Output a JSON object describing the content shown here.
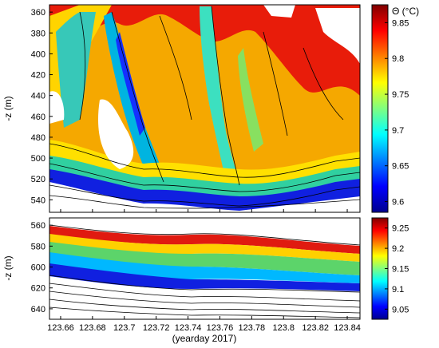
{
  "chart_data": [
    {
      "type": "heatmap",
      "panel": "upper",
      "xlabel": "",
      "ylabel": "-z (m)",
      "xlim": [
        123.653,
        123.848
      ],
      "ylim": [
        552,
        353
      ],
      "y_ticks": [
        360,
        380,
        400,
        420,
        440,
        460,
        480,
        500,
        520,
        540
      ],
      "colorbar": {
        "label": "Θ (°C)",
        "range": [
          9.585,
          9.875
        ],
        "ticks": [
          9.6,
          9.65,
          9.7,
          9.75,
          9.8,
          9.85
        ],
        "colormap": "jet"
      },
      "overlay": "black density contours",
      "color_field_description": "warm (red) water fills the upper column with cold (blue/green) intrusions descending diagonally between yeardays 123.66-123.72 and 123.74-123.78; colder water near 500-540 m; white regions below ~520 m and patches where data is absent"
    },
    {
      "type": "heatmap",
      "panel": "lower",
      "xlabel": "(yearday 2017)",
      "ylabel": "-z (m)",
      "xlim": [
        123.653,
        123.848
      ],
      "ylim": [
        650,
        553
      ],
      "y_ticks": [
        560,
        580,
        600,
        620,
        640
      ],
      "x_ticks": [
        123.66,
        123.68,
        123.7,
        123.72,
        123.74,
        123.76,
        123.78,
        123.8,
        123.82,
        123.84
      ],
      "colorbar": {
        "label": "",
        "range": [
          9.025,
          9.275
        ],
        "ticks": [
          9.05,
          9.1,
          9.15,
          9.2,
          9.25
        ],
        "colormap": "jet"
      },
      "overlay": "black density contours",
      "color_field_description": "a sloping thermocline band: red near 570 m at left to ~590 m at right, descending through yellow/green to blue near 600-625 m; white with dense black contours below"
    }
  ]
}
